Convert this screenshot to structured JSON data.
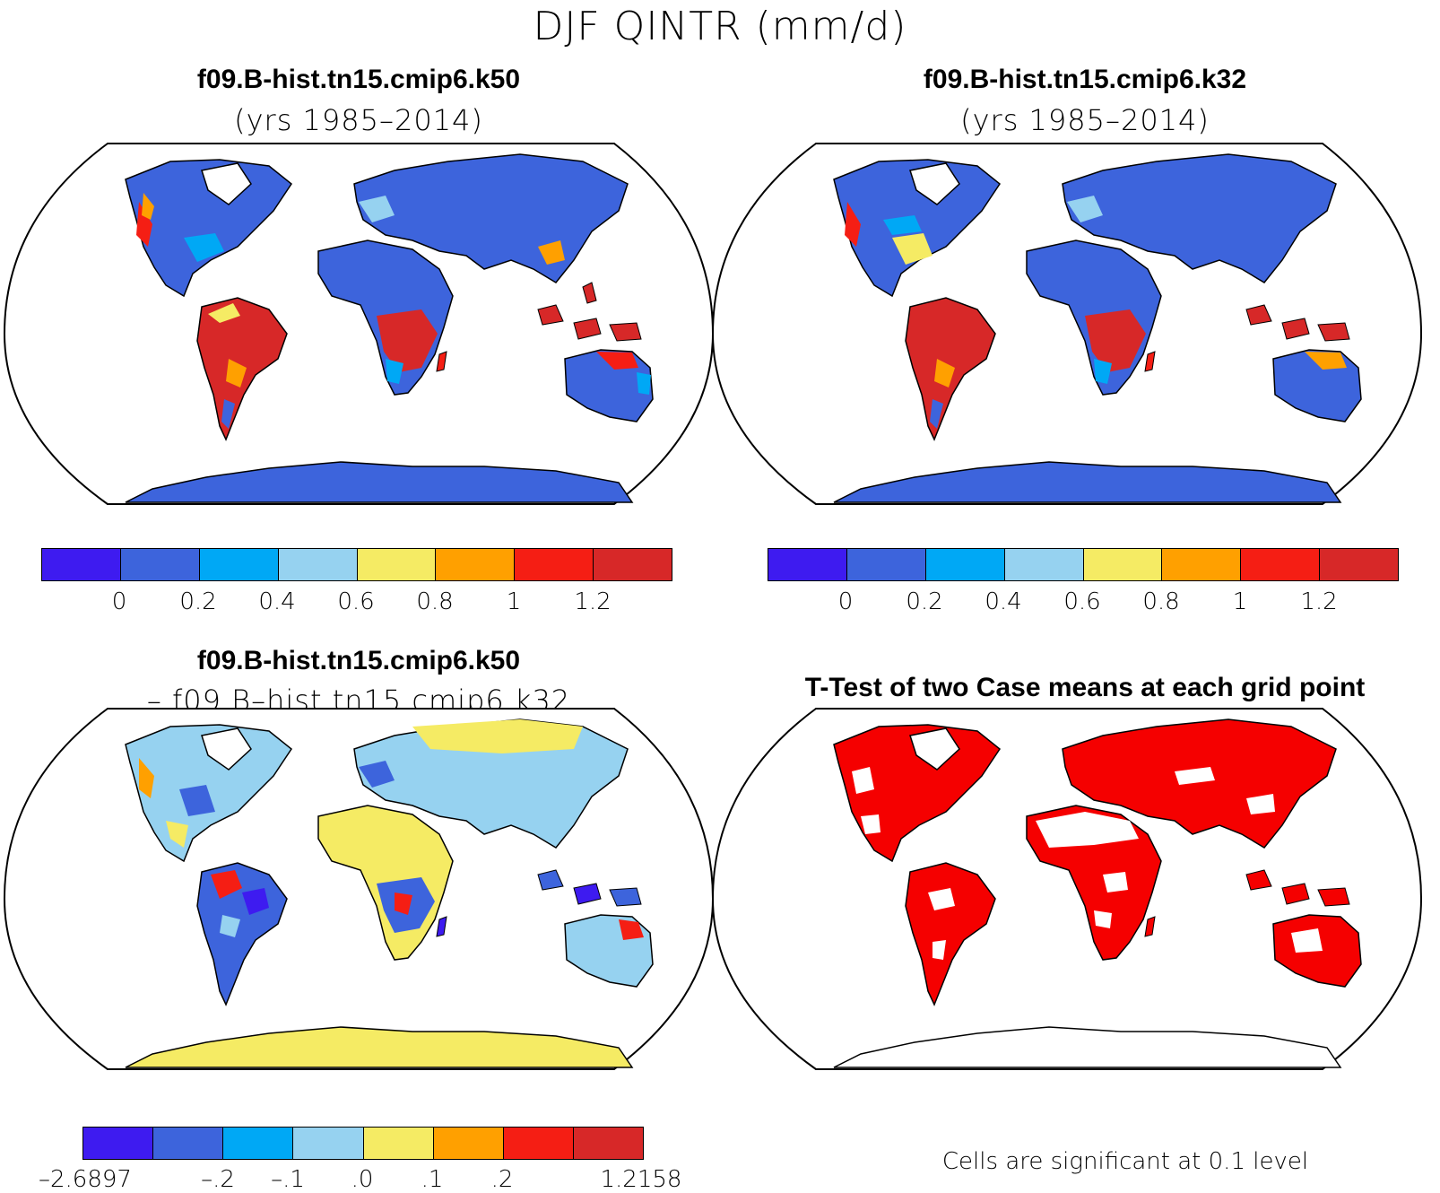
{
  "figure": {
    "title": "DJF QINTR (mm/d)"
  },
  "panels": [
    {
      "title": "f09.B-hist.tn15.cmip6.k50",
      "subtitle": "(yrs 1985–2014)",
      "colorbar": {
        "colors": [
          "#3e1bf0",
          "#3d64dc",
          "#00a8f5",
          "#96d2f0",
          "#f5eb64",
          "#ffa000",
          "#f51e14",
          "#d72828"
        ],
        "labels": [
          "0",
          "0.2",
          "0.4",
          "0.6",
          "0.8",
          "1",
          "1.2"
        ]
      }
    },
    {
      "title": "f09.B-hist.tn15.cmip6.k32",
      "subtitle": "(yrs 1985–2014)",
      "colorbar": {
        "colors": [
          "#3e1bf0",
          "#3d64dc",
          "#00a8f5",
          "#96d2f0",
          "#f5eb64",
          "#ffa000",
          "#f51e14",
          "#d72828"
        ],
        "labels": [
          "0",
          "0.2",
          "0.4",
          "0.6",
          "0.8",
          "1",
          "1.2"
        ]
      }
    },
    {
      "title": "f09.B-hist.tn15.cmip6.k50",
      "subtitle": "– f09.B–hist.tn15.cmip6.k32",
      "colorbar": {
        "colors": [
          "#3e1bf0",
          "#3d64dc",
          "#00a8f5",
          "#96d2f0",
          "#f5eb64",
          "#ffa000",
          "#f51e14",
          "#d72828"
        ],
        "labels": [
          "–2.6897",
          "–.2",
          "–.1",
          ".0",
          ".1",
          ".2",
          "1.2158"
        ]
      }
    },
    {
      "title": "T-Test of two Case means at each grid point",
      "note": "Cells are significant at 0.1 level",
      "significant_color": "#f50000"
    }
  ]
}
